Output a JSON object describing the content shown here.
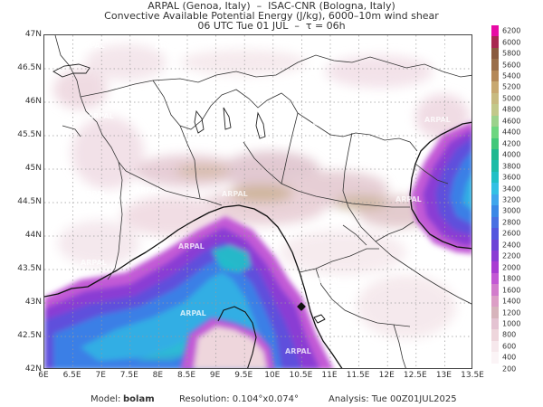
{
  "header": {
    "line1": "ARPAL (Genoa, Italy)  –  ISAC-CNR (Bologna, Italy)",
    "line2": "Convective Available Potential Energy (J/kg), 6000–10m wind shear",
    "line3": "06 UTC Tue 01 JUL  –  τ = 06h"
  },
  "map": {
    "lat_labels": [
      "47N",
      "46.5N",
      "46N",
      "45.5N",
      "45N",
      "44.5N",
      "44N",
      "43.5N",
      "43N",
      "42.5N",
      "42N"
    ],
    "lon_labels": [
      "6E",
      "6.5E",
      "7E",
      "7.5E",
      "8E",
      "8.5E",
      "9E",
      "9.5E",
      "10E",
      "10.5E",
      "11E",
      "11.5E",
      "12E",
      "12.5E",
      "13E",
      "13.5E"
    ],
    "watermark": "ARPAL",
    "colors": {
      "coastline": "#111111",
      "borders": "#333333",
      "grid": "#9a9a9a"
    }
  },
  "colorbar": {
    "levels": [
      "6200",
      "6000",
      "5800",
      "5600",
      "5400",
      "5200",
      "5000",
      "4800",
      "4600",
      "4400",
      "4200",
      "4000",
      "3800",
      "3600",
      "3400",
      "3200",
      "3000",
      "2800",
      "2600",
      "2400",
      "2200",
      "2000",
      "1800",
      "1600",
      "1400",
      "1200",
      "1000",
      "800",
      "600",
      "400",
      "200"
    ],
    "colors": [
      "#e80aa5",
      "#a82850",
      "#8a5a3e",
      "#9a6e4a",
      "#b48858",
      "#c8a870",
      "#c8ba80",
      "#c2c88a",
      "#9cd28c",
      "#6ed680",
      "#42c87a",
      "#20b890",
      "#1cbca8",
      "#20c0c6",
      "#32c0e4",
      "#3ea6ec",
      "#3a88e6",
      "#4870e2",
      "#5456de",
      "#6c44d6",
      "#8a3cd4",
      "#a83cd2",
      "#c258d4",
      "#d27ccc",
      "#dc9ec6",
      "#d7b4bc",
      "#e4c3d2",
      "#eed6dc",
      "#f6e8ec",
      "#fbf4f6",
      "#ffffff"
    ]
  },
  "footer": {
    "model_label": "Model:",
    "model_value": "bolam",
    "resolution": "Resolution: 0.104°x0.074°",
    "analysis": "Analysis: Tue 00Z01JUL2025"
  }
}
